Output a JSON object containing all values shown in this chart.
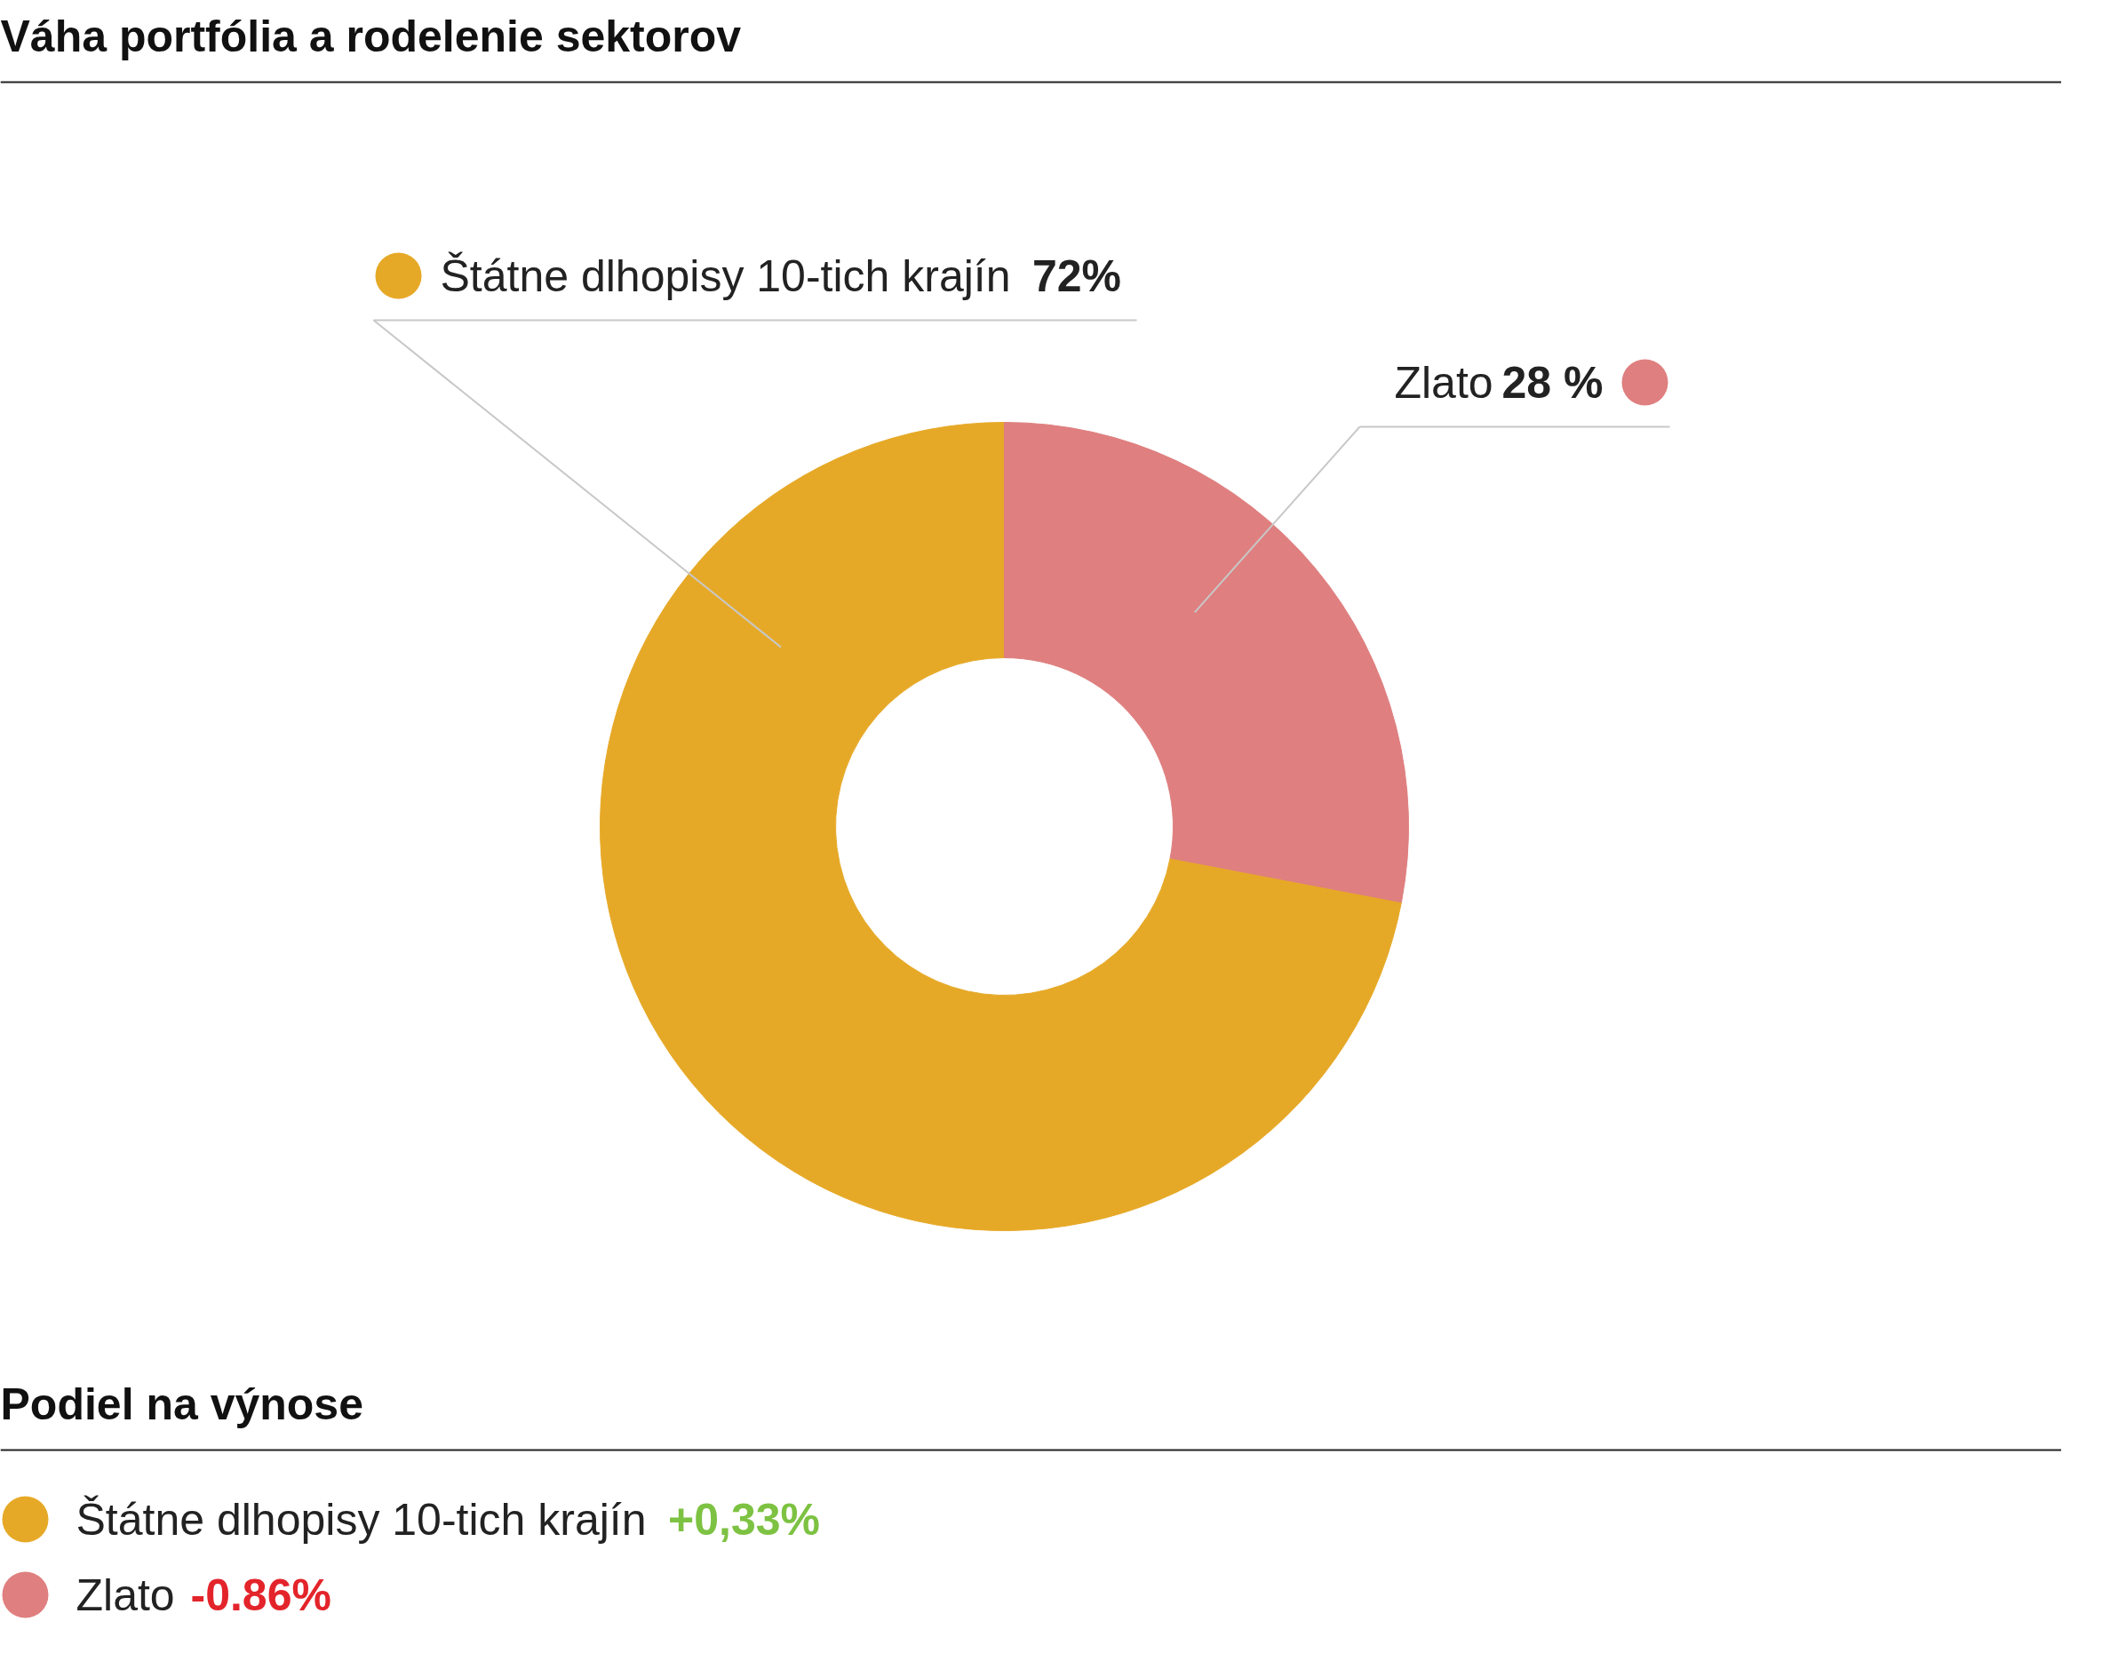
{
  "chart_data": [
    {
      "type": "donut",
      "title": "Váha portfólia a rodelenie sektorov",
      "categories": [
        "Štátne dlhopisy 10-tich krajín",
        "Zlato"
      ],
      "values": [
        72,
        28
      ],
      "colors": [
        "#e6a927",
        "#df7f7f"
      ],
      "value_labels": [
        "72%",
        "28 %"
      ]
    },
    {
      "type": "other",
      "title": "Podiel na výnose",
      "categories": [
        "Štátne dlhopisy 10-tich krajín",
        "Zlato"
      ],
      "values": [
        0.33,
        -0.86
      ],
      "value_labels": [
        "+0,33%",
        "-0.86%"
      ],
      "colors": [
        "#e6a927",
        "#df7f7f"
      ]
    }
  ]
}
